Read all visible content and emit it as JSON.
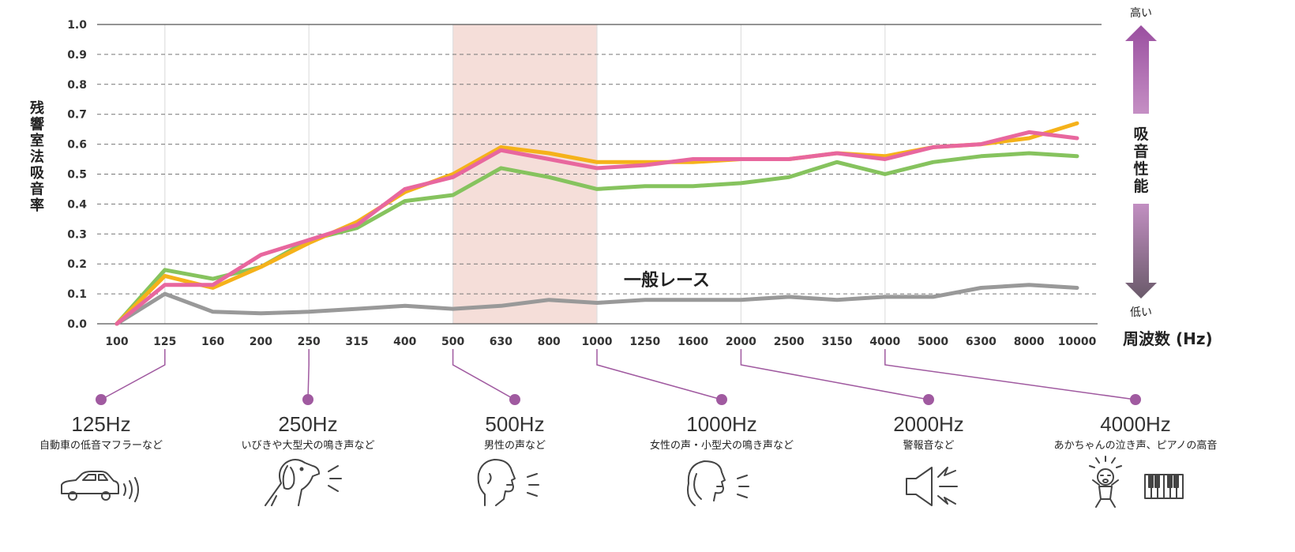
{
  "chart_data": {
    "type": "line",
    "x": [
      "100",
      "125",
      "160",
      "200",
      "250",
      "315",
      "400",
      "500",
      "630",
      "800",
      "1000",
      "1250",
      "1600",
      "2000",
      "2500",
      "3150",
      "4000",
      "5000",
      "6300",
      "8000",
      "10000"
    ],
    "ylabel": "残響室法吸音率",
    "xlabel_unit": "周波数 (Hz)",
    "yticks": [
      "0.0",
      "0.1",
      "0.2",
      "0.3",
      "0.4",
      "0.5",
      "0.6",
      "0.7",
      "0.8",
      "0.9",
      "1.0"
    ],
    "ylim": [
      0,
      1.0
    ],
    "grid": "horizontal dashed",
    "highlight_range": [
      "500",
      "1000"
    ],
    "series": [
      {
        "color": "#f5b21a",
        "values": [
          0.0,
          0.16,
          0.12,
          0.19,
          0.27,
          0.34,
          0.44,
          0.5,
          0.59,
          0.57,
          0.54,
          0.54,
          0.54,
          0.55,
          0.55,
          0.57,
          0.56,
          0.59,
          0.6,
          0.62,
          0.67
        ]
      },
      {
        "color": "#86c35e",
        "values": [
          0.0,
          0.18,
          0.15,
          0.19,
          0.28,
          0.32,
          0.41,
          0.43,
          0.52,
          0.49,
          0.45,
          0.46,
          0.46,
          0.47,
          0.49,
          0.54,
          0.5,
          0.54,
          0.56,
          0.57,
          0.56
        ]
      },
      {
        "color": "#e8679e",
        "values": [
          0.0,
          0.13,
          0.13,
          0.23,
          0.28,
          0.33,
          0.45,
          0.49,
          0.58,
          0.55,
          0.52,
          0.53,
          0.55,
          0.55,
          0.55,
          0.57,
          0.55,
          0.59,
          0.6,
          0.64,
          0.62
        ]
      },
      {
        "name": "一般レース",
        "color": "#999999",
        "values": [
          0.0,
          0.1,
          0.04,
          0.035,
          0.04,
          0.05,
          0.06,
          0.05,
          0.06,
          0.08,
          0.07,
          0.08,
          0.08,
          0.08,
          0.09,
          0.08,
          0.09,
          0.09,
          0.12,
          0.13,
          0.12
        ]
      }
    ],
    "series_annotation": "一般レース"
  },
  "performance_indicator": {
    "high_label": "高い",
    "low_label": "低い",
    "title": "吸音性能",
    "arrow_top_color": "#a05aa0",
    "arrow_bottom_color": "#6f6070"
  },
  "frequency_examples": [
    {
      "freq": "125",
      "label": "125Hz",
      "desc": "自動車の低音マフラーなど",
      "icon": "car-icon"
    },
    {
      "freq": "250",
      "label": "250Hz",
      "desc": "いびきや大型犬の鳴き声など",
      "icon": "dog-barking-icon"
    },
    {
      "freq": "500",
      "label": "500Hz",
      "desc": "男性の声など",
      "icon": "male-voice-icon"
    },
    {
      "freq": "1000",
      "label": "1000Hz",
      "desc": "女性の声・小型犬の鳴き声など",
      "icon": "female-voice-icon"
    },
    {
      "freq": "2000",
      "label": "2000Hz",
      "desc": "警報音など",
      "icon": "speaker-alarm-icon"
    },
    {
      "freq": "4000",
      "label": "4000Hz",
      "desc": "あかちゃんの泣き声、ピアノの高音",
      "icon": "baby-piano-icon"
    }
  ],
  "colors": {
    "highlight": "#f5ded9",
    "connector": "#a05aa0",
    "grid": "#777777"
  }
}
